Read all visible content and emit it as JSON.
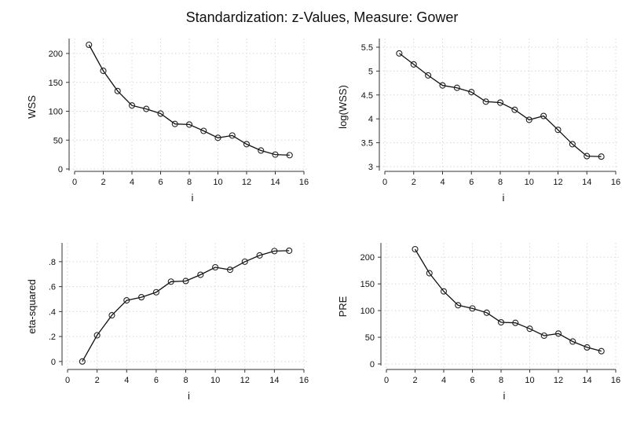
{
  "figure": {
    "title": "Standardization: z-Values, Measure: Gower"
  },
  "chart_data": [
    {
      "type": "line",
      "title": "",
      "xlabel": "i",
      "ylabel": "WSS",
      "xlim": [
        0,
        16
      ],
      "ylim": [
        0,
        215
      ],
      "xticks": [
        0,
        2,
        4,
        6,
        8,
        10,
        12,
        14,
        16
      ],
      "xtick_labels": [
        "0",
        "2",
        "4",
        "6",
        "8",
        "10",
        "12",
        "14",
        "16"
      ],
      "yticks": [
        0,
        50,
        100,
        150,
        200
      ],
      "ytick_labels": [
        "0",
        "50",
        "100",
        "150",
        "200"
      ],
      "grid": true,
      "series": [
        {
          "x": [
            1,
            2,
            3,
            4,
            5,
            6,
            7,
            8,
            9,
            10,
            11,
            12,
            13,
            14,
            15
          ],
          "y": [
            215,
            170,
            135,
            110,
            104,
            96,
            78,
            77,
            66,
            54,
            58,
            43,
            32,
            25,
            24
          ]
        }
      ]
    },
    {
      "type": "line",
      "title": "",
      "xlabel": "i",
      "ylabel": "log(WSS)",
      "xlim": [
        0,
        16
      ],
      "ylim": [
        2.95,
        5.55
      ],
      "xticks": [
        0,
        2,
        4,
        6,
        8,
        10,
        12,
        14,
        16
      ],
      "xtick_labels": [
        "0",
        "2",
        "4",
        "6",
        "8",
        "10",
        "12",
        "14",
        "16"
      ],
      "yticks": [
        3,
        3.5,
        4,
        4.5,
        5,
        5.5
      ],
      "ytick_labels": [
        "3",
        "3.5",
        "4",
        "4.5",
        "5",
        "5.5"
      ],
      "grid": true,
      "series": [
        {
          "x": [
            1,
            2,
            3,
            4,
            5,
            6,
            7,
            8,
            9,
            10,
            11,
            12,
            13,
            14,
            15
          ],
          "y": [
            5.37,
            5.14,
            4.91,
            4.7,
            4.65,
            4.56,
            4.36,
            4.34,
            4.19,
            3.98,
            4.06,
            3.77,
            3.47,
            3.22,
            3.21
          ]
        }
      ]
    },
    {
      "type": "line",
      "title": "",
      "xlabel": "i",
      "ylabel": "eta-squared",
      "xlim": [
        0,
        16
      ],
      "ylim": [
        -0.02,
        0.9
      ],
      "xticks": [
        0,
        2,
        4,
        6,
        8,
        10,
        12,
        14,
        16
      ],
      "xtick_labels": [
        "0",
        "2",
        "4",
        "6",
        "8",
        "10",
        "12",
        "14",
        "16"
      ],
      "yticks": [
        0,
        0.2,
        0.4,
        0.6,
        0.8
      ],
      "ytick_labels": [
        "0",
        ".2",
        ".4",
        ".6",
        ".8"
      ],
      "grid": true,
      "series": [
        {
          "x": [
            1,
            2,
            3,
            4,
            5,
            6,
            7,
            8,
            9,
            10,
            11,
            12,
            13,
            14,
            15
          ],
          "y": [
            0,
            0.21,
            0.37,
            0.49,
            0.515,
            0.555,
            0.64,
            0.645,
            0.695,
            0.755,
            0.735,
            0.8,
            0.85,
            0.885,
            0.888
          ]
        }
      ]
    },
    {
      "type": "line",
      "title": "",
      "xlabel": "i",
      "ylabel": "PRE",
      "xlim": [
        0,
        16
      ],
      "ylim": [
        0,
        215
      ],
      "xticks": [
        0,
        2,
        4,
        6,
        8,
        10,
        12,
        14,
        16
      ],
      "xtick_labels": [
        "0",
        "2",
        "4",
        "6",
        "8",
        "10",
        "12",
        "14",
        "16"
      ],
      "yticks": [
        0,
        50,
        100,
        150,
        200
      ],
      "ytick_labels": [
        "0",
        "50",
        "100",
        "150",
        "200"
      ],
      "grid": true,
      "series": [
        {
          "x": [
            2,
            3,
            4,
            5,
            6,
            7,
            8,
            9,
            10,
            11,
            12,
            13,
            14,
            15
          ],
          "y": [
            215,
            170,
            136,
            110,
            104,
            96,
            78,
            77,
            66,
            53,
            57,
            42,
            31,
            24
          ]
        }
      ]
    }
  ]
}
